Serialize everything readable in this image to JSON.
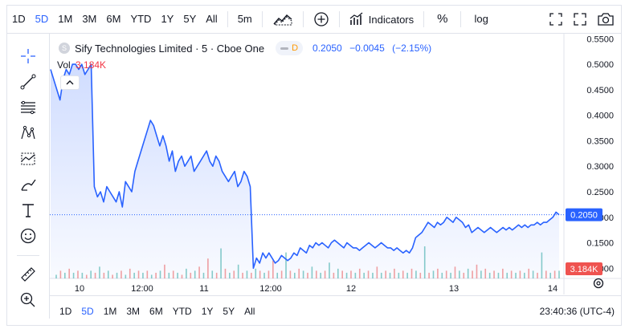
{
  "toolbar": {
    "ranges": [
      "1D",
      "5D",
      "1M",
      "3M",
      "6M",
      "YTD",
      "1Y",
      "5Y",
      "All"
    ],
    "active_range": "5D",
    "interval": "5m",
    "indicators_label": "Indicators",
    "percent_label": "%",
    "log_label": "log"
  },
  "legend": {
    "logo_letter": "S",
    "title": "Sify Technologies Limited · 5 · Cboe One",
    "badge": "D",
    "price": "0.2050",
    "change": "−0.0045",
    "change_pct": "(−2.15%)"
  },
  "volume": {
    "label": "Vol",
    "value": "3.184K"
  },
  "bottom": {
    "ranges": [
      "1D",
      "5D",
      "1M",
      "3M",
      "6M",
      "YTD",
      "1Y",
      "5Y",
      "All"
    ],
    "active_range": "5D",
    "clock": "23:40:36 (UTC-4)"
  },
  "colors": {
    "line": "#2962ff",
    "area": "#2962ff",
    "up_volume": "#26a69a",
    "down_volume": "#ef5350",
    "accent": "#2962ff"
  },
  "chart_data": {
    "type": "area",
    "y_ticks": [
      "0.5500",
      "0.5000",
      "0.4500",
      "0.4000",
      "0.3500",
      "0.3000",
      "0.2500",
      "0.2000",
      "0.1500",
      "0.1000"
    ],
    "ylim": [
      0.08,
      0.56
    ],
    "x_ticks": [
      "10",
      "12:00",
      "11",
      "12:00",
      "12",
      "13",
      "14"
    ],
    "last_price_label": "0.2050",
    "last_volume_label": "3.184K",
    "sessions": 5,
    "price": [
      0.49,
      0.47,
      0.45,
      0.43,
      0.47,
      0.49,
      0.48,
      0.5,
      0.5,
      0.49,
      0.5,
      0.48,
      0.49,
      0.5,
      0.26,
      0.24,
      0.25,
      0.23,
      0.26,
      0.25,
      0.24,
      0.23,
      0.25,
      0.22,
      0.27,
      0.26,
      0.25,
      0.29,
      0.31,
      0.33,
      0.35,
      0.37,
      0.39,
      0.38,
      0.36,
      0.34,
      0.36,
      0.34,
      0.31,
      0.33,
      0.29,
      0.31,
      0.32,
      0.3,
      0.31,
      0.32,
      0.29,
      0.3,
      0.31,
      0.32,
      0.33,
      0.31,
      0.3,
      0.32,
      0.31,
      0.29,
      0.28,
      0.27,
      0.28,
      0.29,
      0.26,
      0.27,
      0.29,
      0.28,
      0.26,
      0.1,
      0.12,
      0.11,
      0.13,
      0.12,
      0.13,
      0.12,
      0.11,
      0.115,
      0.125,
      0.12,
      0.115,
      0.12,
      0.13,
      0.125,
      0.14,
      0.135,
      0.13,
      0.145,
      0.14,
      0.15,
      0.145,
      0.15,
      0.145,
      0.14,
      0.15,
      0.155,
      0.15,
      0.145,
      0.14,
      0.15,
      0.145,
      0.14,
      0.14,
      0.135,
      0.14,
      0.145,
      0.15,
      0.145,
      0.14,
      0.145,
      0.15,
      0.145,
      0.14,
      0.14,
      0.135,
      0.14,
      0.135,
      0.13,
      0.135,
      0.13,
      0.14,
      0.16,
      0.165,
      0.17,
      0.18,
      0.19,
      0.185,
      0.18,
      0.19,
      0.185,
      0.19,
      0.2,
      0.195,
      0.19,
      0.2,
      0.195,
      0.19,
      0.18,
      0.185,
      0.17,
      0.175,
      0.18,
      0.175,
      0.17,
      0.175,
      0.18,
      0.175,
      0.17,
      0.175,
      0.18,
      0.175,
      0.18,
      0.175,
      0.18,
      0.185,
      0.18,
      0.185,
      0.18,
      0.185,
      0.185,
      0.19,
      0.185,
      0.19,
      0.19,
      0.195,
      0.2,
      0.21,
      0.205
    ],
    "volume": [
      {
        "v": 1,
        "up": true
      },
      {
        "v": 3,
        "up": false
      },
      {
        "v": 2,
        "up": true
      },
      {
        "v": 4,
        "up": false
      },
      {
        "v": 2,
        "up": true
      },
      {
        "v": 3,
        "up": false
      },
      {
        "v": 2,
        "up": true
      },
      {
        "v": 1,
        "up": false
      },
      {
        "v": 3,
        "up": true
      },
      {
        "v": 2,
        "up": false
      },
      {
        "v": 5,
        "up": true
      },
      {
        "v": 2,
        "up": false
      },
      {
        "v": 3,
        "up": true
      },
      {
        "v": 1,
        "up": false
      },
      {
        "v": 2,
        "up": true
      },
      {
        "v": 3,
        "up": false
      },
      {
        "v": 1,
        "up": true
      },
      {
        "v": 4,
        "up": false
      },
      {
        "v": 2,
        "up": true
      },
      {
        "v": 3,
        "up": false
      },
      {
        "v": 2,
        "up": true
      },
      {
        "v": 3,
        "up": false
      },
      {
        "v": 1,
        "up": true
      },
      {
        "v": 2,
        "up": false
      },
      {
        "v": 3,
        "up": true
      },
      {
        "v": 6,
        "up": false
      },
      {
        "v": 2,
        "up": true
      },
      {
        "v": 3,
        "up": false
      },
      {
        "v": 2,
        "up": true
      },
      {
        "v": 1,
        "up": false
      },
      {
        "v": 4,
        "up": true
      },
      {
        "v": 2,
        "up": false
      },
      {
        "v": 3,
        "up": true
      },
      {
        "v": 5,
        "up": false
      },
      {
        "v": 2,
        "up": true
      },
      {
        "v": 9,
        "up": false
      },
      {
        "v": 3,
        "up": true
      },
      {
        "v": 2,
        "up": false
      },
      {
        "v": 14,
        "up": true
      },
      {
        "v": 4,
        "up": false
      },
      {
        "v": 2,
        "up": true
      },
      {
        "v": 3,
        "up": false
      },
      {
        "v": 6,
        "up": true
      },
      {
        "v": 2,
        "up": false
      },
      {
        "v": 3,
        "up": true
      },
      {
        "v": 2,
        "up": false
      },
      {
        "v": 4,
        "up": true
      },
      {
        "v": 3,
        "up": false
      },
      {
        "v": 2,
        "up": true
      },
      {
        "v": 3,
        "up": false
      },
      {
        "v": 8,
        "up": false
      },
      {
        "v": 2,
        "up": true
      },
      {
        "v": 3,
        "up": false
      },
      {
        "v": 12,
        "up": true
      },
      {
        "v": 3,
        "up": false
      },
      {
        "v": 2,
        "up": true
      },
      {
        "v": 4,
        "up": false
      },
      {
        "v": 3,
        "up": true
      },
      {
        "v": 2,
        "up": false
      },
      {
        "v": 5,
        "up": true
      },
      {
        "v": 3,
        "up": false
      },
      {
        "v": 2,
        "up": true
      },
      {
        "v": 3,
        "up": false
      },
      {
        "v": 7,
        "up": true
      },
      {
        "v": 2,
        "up": false
      },
      {
        "v": 4,
        "up": true
      },
      {
        "v": 3,
        "up": false
      },
      {
        "v": 2,
        "up": true
      },
      {
        "v": 3,
        "up": false
      },
      {
        "v": 2,
        "up": true
      },
      {
        "v": 4,
        "up": false
      },
      {
        "v": 2,
        "up": true
      },
      {
        "v": 3,
        "up": false
      },
      {
        "v": 2,
        "up": true
      },
      {
        "v": 5,
        "up": false
      },
      {
        "v": 2,
        "up": true
      },
      {
        "v": 3,
        "up": false
      },
      {
        "v": 2,
        "up": true
      },
      {
        "v": 4,
        "up": false
      },
      {
        "v": 2,
        "up": true
      },
      {
        "v": 3,
        "up": false
      },
      {
        "v": 2,
        "up": true
      },
      {
        "v": 4,
        "up": false
      },
      {
        "v": 3,
        "up": true
      },
      {
        "v": 2,
        "up": false
      },
      {
        "v": 15,
        "up": true
      },
      {
        "v": 2,
        "up": false
      },
      {
        "v": 3,
        "up": true
      },
      {
        "v": 4,
        "up": false
      },
      {
        "v": 2,
        "up": true
      },
      {
        "v": 3,
        "up": false
      },
      {
        "v": 2,
        "up": true
      },
      {
        "v": 5,
        "up": false
      },
      {
        "v": 3,
        "up": true
      },
      {
        "v": 2,
        "up": false
      },
      {
        "v": 4,
        "up": true
      },
      {
        "v": 3,
        "up": false
      },
      {
        "v": 6,
        "up": false
      },
      {
        "v": 3,
        "up": true
      },
      {
        "v": 4,
        "up": false
      },
      {
        "v": 2,
        "up": true
      },
      {
        "v": 3,
        "up": false
      },
      {
        "v": 2,
        "up": true
      },
      {
        "v": 4,
        "up": false
      },
      {
        "v": 2,
        "up": true
      },
      {
        "v": 3,
        "up": false
      },
      {
        "v": 2,
        "up": true
      },
      {
        "v": 3,
        "up": false
      },
      {
        "v": 2,
        "up": true
      },
      {
        "v": 4,
        "up": false
      },
      {
        "v": 3,
        "up": true
      },
      {
        "v": 2,
        "up": false
      },
      {
        "v": 12,
        "up": true
      },
      {
        "v": 3,
        "up": false
      },
      {
        "v": 2,
        "up": true
      },
      {
        "v": 3,
        "up": false
      },
      {
        "v": 3,
        "up": true
      }
    ]
  }
}
